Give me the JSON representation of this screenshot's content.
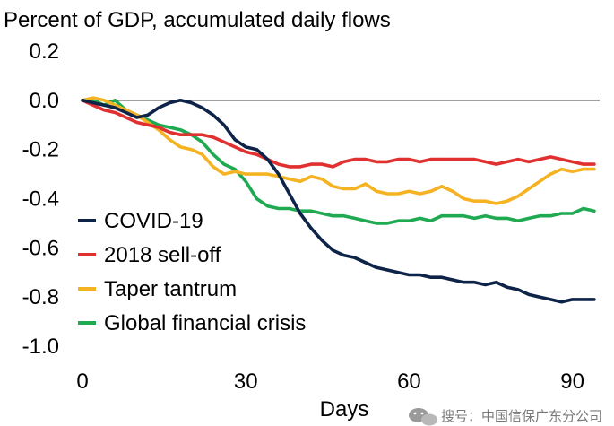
{
  "chart_data": {
    "type": "line",
    "title": "Percent of GDP, accumulated daily flows",
    "xlabel": "Days",
    "ylabel": "",
    "xlim": [
      0,
      95
    ],
    "ylim": [
      -1.0,
      0.2
    ],
    "xticks": [
      "0",
      "30",
      "60",
      "90"
    ],
    "xtick_values": [
      0,
      30,
      60,
      90
    ],
    "yticks": [
      "0.2",
      "0.0",
      "-0.2",
      "-0.4",
      "-0.6",
      "-0.8",
      "-1.0"
    ],
    "ytick_values": [
      0.2,
      0.0,
      -0.2,
      -0.4,
      -0.6,
      -0.8,
      -1.0
    ],
    "grid": false,
    "reference_line_y": 0.0,
    "legend_position": "left",
    "series": [
      {
        "name": "COVID-19",
        "color": "#0e2348",
        "x": [
          0,
          2,
          4,
          6,
          8,
          10,
          12,
          14,
          16,
          18,
          20,
          22,
          24,
          26,
          28,
          30,
          32,
          34,
          36,
          38,
          40,
          42,
          44,
          46,
          48,
          50,
          52,
          54,
          56,
          58,
          60,
          62,
          64,
          66,
          68,
          70,
          72,
          74,
          76,
          78,
          80,
          82,
          84,
          86,
          88,
          90,
          92,
          94
        ],
        "values": [
          0.0,
          -0.01,
          -0.02,
          -0.03,
          -0.05,
          -0.07,
          -0.06,
          -0.03,
          -0.01,
          0.0,
          -0.01,
          -0.03,
          -0.06,
          -0.1,
          -0.16,
          -0.19,
          -0.2,
          -0.24,
          -0.3,
          -0.38,
          -0.46,
          -0.52,
          -0.57,
          -0.61,
          -0.63,
          -0.64,
          -0.66,
          -0.68,
          -0.69,
          -0.7,
          -0.71,
          -0.71,
          -0.72,
          -0.72,
          -0.73,
          -0.74,
          -0.74,
          -0.75,
          -0.74,
          -0.76,
          -0.77,
          -0.79,
          -0.8,
          -0.81,
          -0.82,
          -0.81,
          -0.81,
          -0.81
        ]
      },
      {
        "name": "2018 sell-off",
        "color": "#e03030",
        "x": [
          0,
          2,
          4,
          6,
          8,
          10,
          12,
          14,
          16,
          18,
          20,
          22,
          24,
          26,
          28,
          30,
          32,
          34,
          36,
          38,
          40,
          42,
          44,
          46,
          48,
          50,
          52,
          54,
          56,
          58,
          60,
          62,
          64,
          66,
          68,
          70,
          72,
          74,
          76,
          78,
          80,
          82,
          84,
          86,
          88,
          90,
          92,
          94
        ],
        "values": [
          0.0,
          -0.02,
          -0.04,
          -0.05,
          -0.07,
          -0.09,
          -0.1,
          -0.11,
          -0.13,
          -0.14,
          -0.14,
          -0.14,
          -0.15,
          -0.17,
          -0.19,
          -0.21,
          -0.22,
          -0.24,
          -0.26,
          -0.27,
          -0.27,
          -0.26,
          -0.26,
          -0.27,
          -0.25,
          -0.24,
          -0.24,
          -0.25,
          -0.25,
          -0.24,
          -0.24,
          -0.25,
          -0.24,
          -0.24,
          -0.24,
          -0.24,
          -0.24,
          -0.25,
          -0.26,
          -0.25,
          -0.24,
          -0.25,
          -0.24,
          -0.23,
          -0.24,
          -0.25,
          -0.26,
          -0.26
        ]
      },
      {
        "name": "Taper tantrum",
        "color": "#f5b324",
        "x": [
          0,
          2,
          4,
          6,
          8,
          10,
          12,
          14,
          16,
          18,
          20,
          22,
          24,
          26,
          28,
          30,
          32,
          34,
          36,
          38,
          40,
          42,
          44,
          46,
          48,
          50,
          52,
          54,
          56,
          58,
          60,
          62,
          64,
          66,
          68,
          70,
          72,
          74,
          76,
          78,
          80,
          82,
          84,
          86,
          88,
          90,
          92,
          94
        ],
        "values": [
          0.0,
          0.01,
          0.0,
          -0.02,
          -0.04,
          -0.06,
          -0.09,
          -0.12,
          -0.16,
          -0.19,
          -0.2,
          -0.22,
          -0.27,
          -0.3,
          -0.29,
          -0.3,
          -0.3,
          -0.3,
          -0.31,
          -0.32,
          -0.33,
          -0.31,
          -0.32,
          -0.35,
          -0.36,
          -0.36,
          -0.34,
          -0.37,
          -0.38,
          -0.38,
          -0.37,
          -0.38,
          -0.37,
          -0.35,
          -0.37,
          -0.4,
          -0.41,
          -0.41,
          -0.42,
          -0.41,
          -0.39,
          -0.36,
          -0.33,
          -0.3,
          -0.28,
          -0.29,
          -0.28,
          -0.28
        ]
      },
      {
        "name": "Global financial crisis",
        "color": "#1faa52",
        "x": [
          0,
          2,
          4,
          6,
          8,
          10,
          12,
          14,
          16,
          18,
          20,
          22,
          24,
          26,
          28,
          30,
          32,
          34,
          36,
          38,
          40,
          42,
          44,
          46,
          48,
          50,
          52,
          54,
          56,
          58,
          60,
          62,
          64,
          66,
          68,
          70,
          72,
          74,
          76,
          78,
          80,
          82,
          84,
          86,
          88,
          90,
          92,
          94
        ],
        "values": [
          0.0,
          0.0,
          -0.02,
          0.0,
          -0.04,
          -0.06,
          -0.08,
          -0.1,
          -0.11,
          -0.12,
          -0.14,
          -0.17,
          -0.22,
          -0.26,
          -0.28,
          -0.33,
          -0.4,
          -0.43,
          -0.44,
          -0.44,
          -0.45,
          -0.45,
          -0.46,
          -0.47,
          -0.47,
          -0.48,
          -0.49,
          -0.5,
          -0.5,
          -0.49,
          -0.49,
          -0.48,
          -0.49,
          -0.47,
          -0.47,
          -0.47,
          -0.48,
          -0.47,
          -0.48,
          -0.48,
          -0.49,
          -0.48,
          -0.47,
          -0.47,
          -0.46,
          -0.46,
          -0.44,
          -0.45
        ]
      }
    ]
  },
  "watermark": {
    "icon": "wechat-icon",
    "text": "搜号：中国信保广东分公司"
  }
}
